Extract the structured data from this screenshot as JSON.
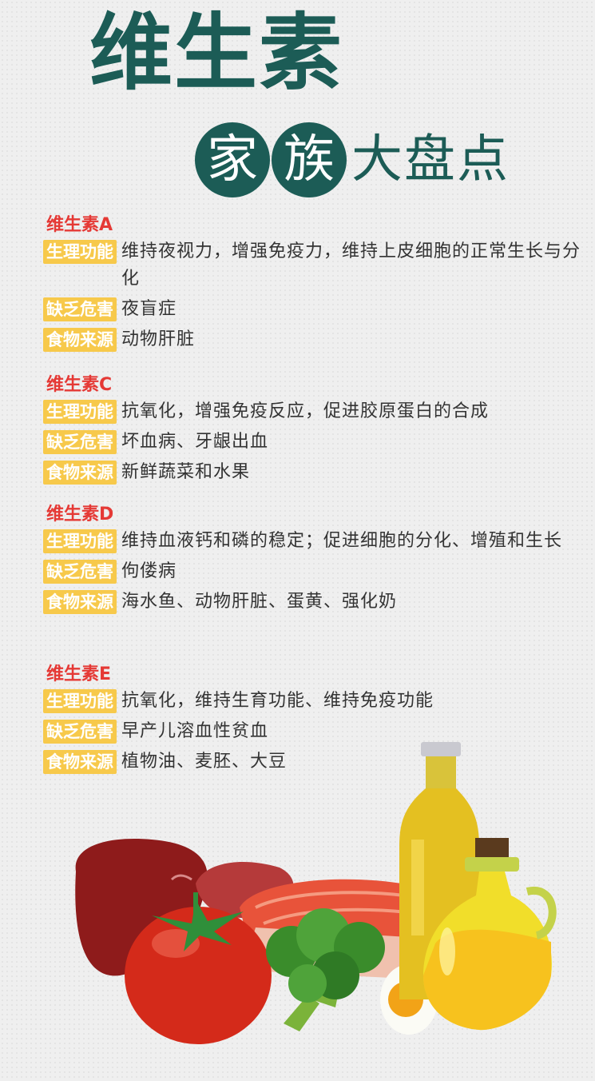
{
  "title": "维生素",
  "subtitle": {
    "circled": [
      "家",
      "族"
    ],
    "plain": "大盘点"
  },
  "sections": [
    {
      "name": "维生素A",
      "rows": [
        {
          "tag": "生理功能",
          "text": "维持夜视力，增强免疫力，维持上皮细胞的正常生长与分化"
        },
        {
          "tag": "缺乏危害",
          "text": "夜盲症"
        },
        {
          "tag": "食物来源",
          "text": "动物肝脏"
        }
      ]
    },
    {
      "name": "维生素C",
      "rows": [
        {
          "tag": "生理功能",
          "text": "抗氧化，增强免疫反应，促进胶原蛋白的合成"
        },
        {
          "tag": "缺乏危害",
          "text": "坏血病、牙龈出血"
        },
        {
          "tag": "食物来源",
          "text": "新鲜蔬菜和水果"
        }
      ]
    },
    {
      "name": "维生素D",
      "rows": [
        {
          "tag": "生理功能",
          "text": "维持血液钙和磷的稳定；促进细胞的分化、增殖和生长"
        },
        {
          "tag": "缺乏危害",
          "text": "佝偻病"
        },
        {
          "tag": "食物来源",
          "text": "海水鱼、动物肝脏、蛋黄、强化奶"
        }
      ]
    },
    {
      "name": "维生素E",
      "rows": [
        {
          "tag": "生理功能",
          "text": "抗氧化，维持生育功能、维持免疫功能"
        },
        {
          "tag": "缺乏危害",
          "text": "早产儿溶血性贫血"
        },
        {
          "tag": "食物来源",
          "text": "植物油、麦胚、大豆"
        }
      ]
    }
  ],
  "colors": {
    "title": "#1c5c56",
    "section_title": "#e53935",
    "tag_bg": "#f7c94b",
    "body_text": "#333333"
  },
  "illustration_items": [
    "liver-icon",
    "salmon-icon",
    "tomato-icon",
    "broccoli-icon",
    "egg-icon",
    "oil-bottle-icon",
    "oil-jug-icon"
  ]
}
